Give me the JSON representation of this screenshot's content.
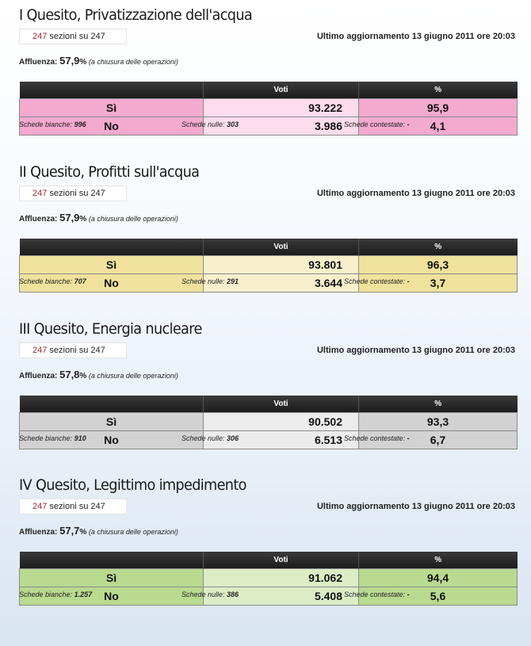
{
  "common": {
    "sezioni_done": "247",
    "sezioni_rest": " sezioni su 247",
    "updated": "Ultimo aggiornamento 13 giugno 2011 ore 20:03",
    "affluenza_label": "Affluenza: ",
    "affluenza_note": " (a chiusura delle operazioni)",
    "col_voti": "Voti",
    "col_pct": "%",
    "bianche_label": "Schede bianche: ",
    "nulle_label": "Schede nulle: ",
    "contestate_label": "Schede contestate: "
  },
  "quesiti": [
    {
      "title": "I Quesito, Privatizzazione dell'acqua",
      "affluenza": "57,9",
      "affluenza_sign": "%",
      "colors": {
        "row_bg": "#f4a9cf",
        "cell_bg": "#fcdced"
      },
      "rows": [
        {
          "label": "Sì",
          "voti": "93.222",
          "pct": "95,9"
        },
        {
          "label": "No",
          "voti": "3.986",
          "pct": "4,1"
        }
      ],
      "bianche": "996",
      "nulle": "303",
      "contestate": "-"
    },
    {
      "title": "II Quesito, Profitti sull'acqua",
      "affluenza": "57,9",
      "affluenza_sign": "%",
      "colors": {
        "row_bg": "#f0e29c",
        "cell_bg": "#f8f0cc"
      },
      "rows": [
        {
          "label": "Sì",
          "voti": "93.801",
          "pct": "96,3"
        },
        {
          "label": "No",
          "voti": "3.644",
          "pct": "3,7"
        }
      ],
      "bianche": "707",
      "nulle": "291",
      "contestate": "-"
    },
    {
      "title": "III Quesito, Energia nucleare",
      "affluenza": "57,8",
      "affluenza_sign": "%",
      "colors": {
        "row_bg": "#d2d2d2",
        "cell_bg": "#ececec"
      },
      "rows": [
        {
          "label": "Sì",
          "voti": "90.502",
          "pct": "93,3"
        },
        {
          "label": "No",
          "voti": "6.513",
          "pct": "6,7"
        }
      ],
      "bianche": "910",
      "nulle": "306",
      "contestate": "-"
    },
    {
      "title": "IV Quesito, Legittimo impedimento",
      "affluenza": "57,7",
      "affluenza_sign": "%",
      "colors": {
        "row_bg": "#b9da8f",
        "cell_bg": "#dcedc6"
      },
      "rows": [
        {
          "label": "Sì",
          "voti": "91.062",
          "pct": "94,4"
        },
        {
          "label": "No",
          "voti": "5.408",
          "pct": "5,6"
        }
      ],
      "bianche": "1.257",
      "nulle": "386",
      "contestate": "-"
    }
  ]
}
